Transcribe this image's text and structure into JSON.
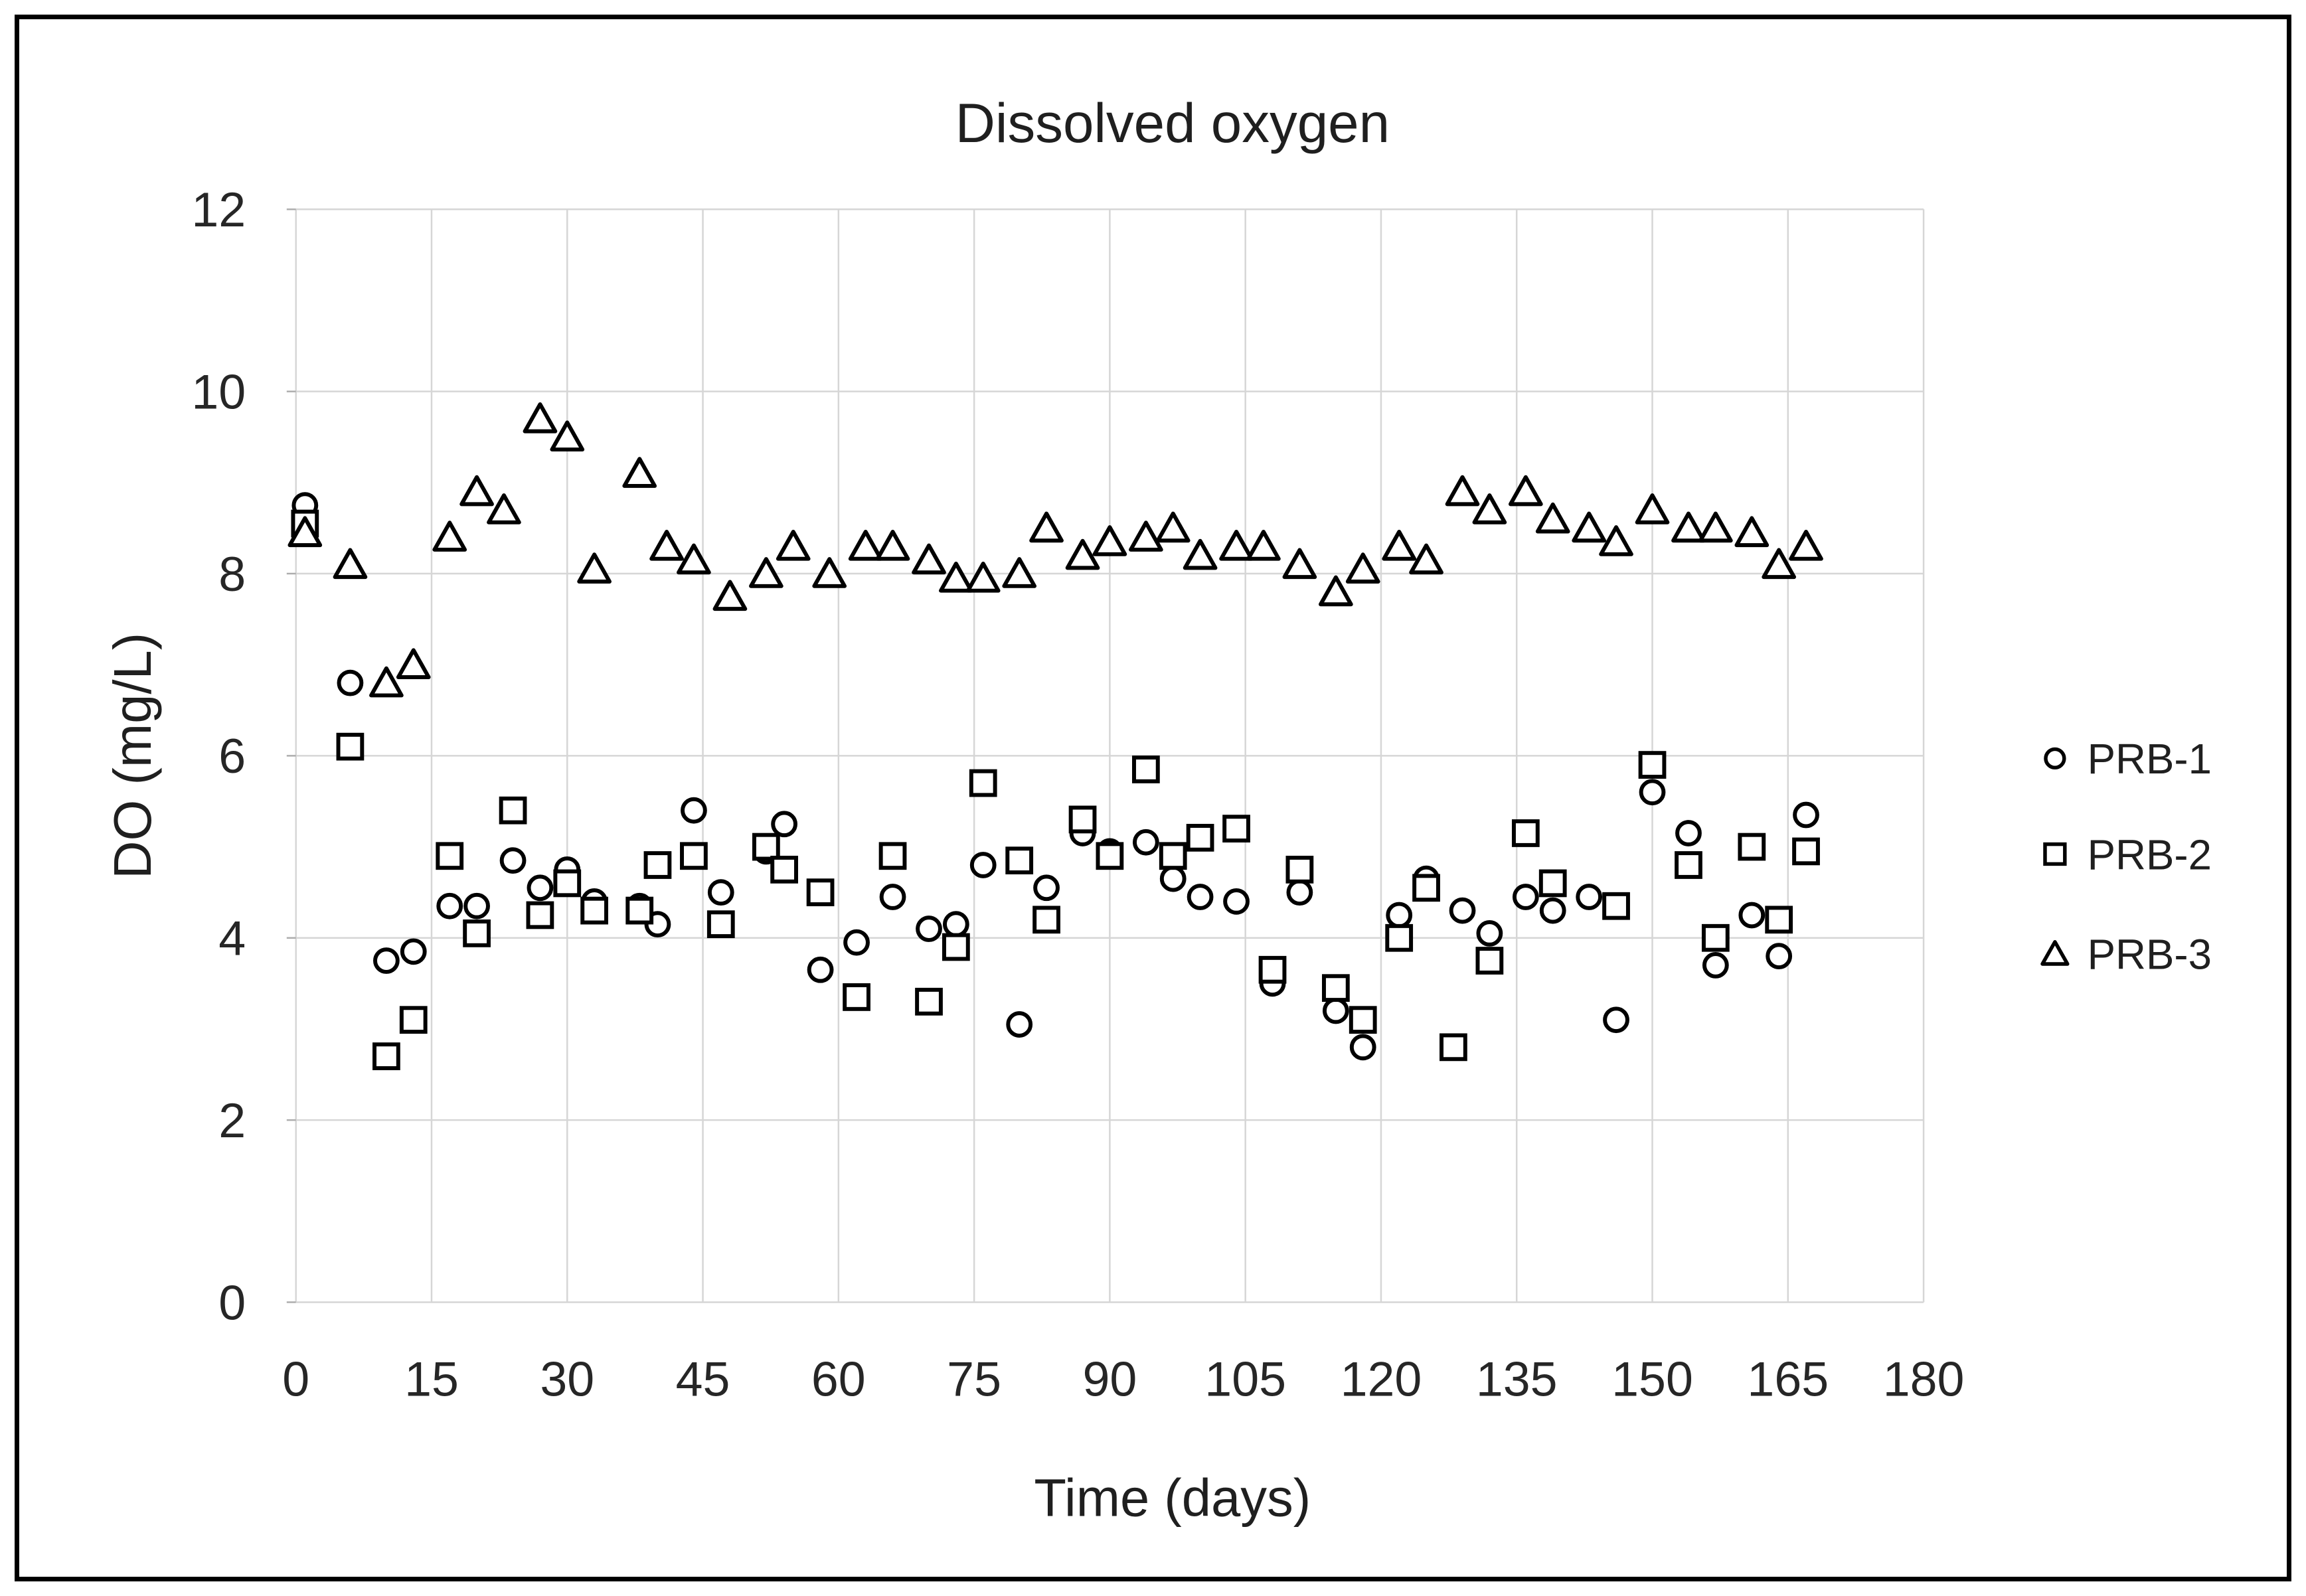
{
  "figure": {
    "background_color": "#ffffff",
    "frame_color": "#000000"
  },
  "chart_data": {
    "type": "scatter",
    "title": "Dissolved oxygen",
    "xlabel": "Time (days)",
    "ylabel": "DO (mg/L)",
    "xlim": [
      0,
      180
    ],
    "ylim": [
      0,
      12
    ],
    "xticks": [
      0,
      15,
      30,
      45,
      60,
      75,
      90,
      105,
      120,
      135,
      150,
      165,
      180
    ],
    "yticks": [
      0,
      2,
      4,
      6,
      8,
      10,
      12
    ],
    "grid": true,
    "legend_position": "right",
    "colors": {
      "marker_stroke": "#000000",
      "marker_fill": "#ffffff",
      "grid": "#d6d6d6",
      "text": "#1f1f1f"
    },
    "series": [
      {
        "name": "PRB-1",
        "marker": "circle",
        "points": [
          [
            1,
            8.75
          ],
          [
            6,
            6.8
          ],
          [
            10,
            3.75
          ],
          [
            13,
            3.85
          ],
          [
            17,
            4.35
          ],
          [
            20,
            4.35
          ],
          [
            24,
            4.85
          ],
          [
            27,
            4.55
          ],
          [
            30,
            4.75
          ],
          [
            33,
            4.4
          ],
          [
            38,
            4.35
          ],
          [
            40,
            4.15
          ],
          [
            44,
            5.4
          ],
          [
            47,
            4.5
          ],
          [
            52,
            4.95
          ],
          [
            54,
            5.25
          ],
          [
            58,
            3.65
          ],
          [
            62,
            3.95
          ],
          [
            66,
            4.45
          ],
          [
            70,
            4.1
          ],
          [
            73,
            4.15
          ],
          [
            76,
            4.8
          ],
          [
            80,
            3.05
          ],
          [
            83,
            4.55
          ],
          [
            87,
            5.15
          ],
          [
            90,
            4.95
          ],
          [
            94,
            5.05
          ],
          [
            97,
            4.65
          ],
          [
            100,
            4.45
          ],
          [
            104,
            4.4
          ],
          [
            108,
            3.5
          ],
          [
            111,
            4.5
          ],
          [
            115,
            3.2
          ],
          [
            118,
            2.8
          ],
          [
            122,
            4.25
          ],
          [
            125,
            4.65
          ],
          [
            129,
            4.3
          ],
          [
            132,
            4.05
          ],
          [
            136,
            4.45
          ],
          [
            139,
            4.3
          ],
          [
            143,
            4.45
          ],
          [
            146,
            3.1
          ],
          [
            150,
            5.6
          ],
          [
            154,
            5.15
          ],
          [
            157,
            3.7
          ],
          [
            161,
            4.25
          ],
          [
            164,
            3.8
          ],
          [
            167,
            5.35
          ]
        ]
      },
      {
        "name": "PRB-2",
        "marker": "square",
        "points": [
          [
            1,
            8.55
          ],
          [
            6,
            6.1
          ],
          [
            10,
            2.7
          ],
          [
            13,
            3.1
          ],
          [
            17,
            4.9
          ],
          [
            20,
            4.05
          ],
          [
            24,
            5.4
          ],
          [
            27,
            4.25
          ],
          [
            30,
            4.6
          ],
          [
            33,
            4.3
          ],
          [
            38,
            4.3
          ],
          [
            40,
            4.8
          ],
          [
            44,
            4.9
          ],
          [
            47,
            4.15
          ],
          [
            52,
            5.0
          ],
          [
            54,
            4.75
          ],
          [
            58,
            4.5
          ],
          [
            62,
            3.35
          ],
          [
            66,
            4.9
          ],
          [
            70,
            3.3
          ],
          [
            73,
            3.9
          ],
          [
            76,
            5.7
          ],
          [
            80,
            4.85
          ],
          [
            83,
            4.2
          ],
          [
            87,
            5.3
          ],
          [
            90,
            4.9
          ],
          [
            94,
            5.85
          ],
          [
            97,
            4.9
          ],
          [
            100,
            5.1
          ],
          [
            104,
            5.2
          ],
          [
            108,
            3.65
          ],
          [
            111,
            4.75
          ],
          [
            115,
            3.45
          ],
          [
            118,
            3.1
          ],
          [
            122,
            4.0
          ],
          [
            125,
            4.55
          ],
          [
            128,
            2.8
          ],
          [
            132,
            3.75
          ],
          [
            136,
            5.15
          ],
          [
            139,
            4.6
          ],
          [
            146,
            4.35
          ],
          [
            150,
            5.9
          ],
          [
            154,
            4.8
          ],
          [
            157,
            4.0
          ],
          [
            161,
            5.0
          ],
          [
            164,
            4.2
          ],
          [
            167,
            4.95
          ]
        ]
      },
      {
        "name": "PRB-3",
        "marker": "triangle",
        "points": [
          [
            1,
            8.45
          ],
          [
            6,
            8.1
          ],
          [
            10,
            6.8
          ],
          [
            13,
            7.0
          ],
          [
            17,
            8.4
          ],
          [
            20,
            8.9
          ],
          [
            23,
            8.7
          ],
          [
            27,
            9.7
          ],
          [
            30,
            9.5
          ],
          [
            33,
            8.05
          ],
          [
            38,
            9.1
          ],
          [
            41,
            8.3
          ],
          [
            44,
            8.15
          ],
          [
            48,
            7.75
          ],
          [
            52,
            8.0
          ],
          [
            55,
            8.3
          ],
          [
            59,
            8.0
          ],
          [
            63,
            8.3
          ],
          [
            66,
            8.3
          ],
          [
            70,
            8.15
          ],
          [
            73,
            7.95
          ],
          [
            76,
            7.95
          ],
          [
            80,
            8.0
          ],
          [
            83,
            8.5
          ],
          [
            87,
            8.2
          ],
          [
            90,
            8.35
          ],
          [
            94,
            8.4
          ],
          [
            97,
            8.5
          ],
          [
            100,
            8.2
          ],
          [
            104,
            8.3
          ],
          [
            107,
            8.3
          ],
          [
            111,
            8.1
          ],
          [
            115,
            7.8
          ],
          [
            118,
            8.05
          ],
          [
            122,
            8.3
          ],
          [
            125,
            8.15
          ],
          [
            129,
            8.9
          ],
          [
            132,
            8.7
          ],
          [
            136,
            8.9
          ],
          [
            139,
            8.6
          ],
          [
            143,
            8.5
          ],
          [
            146,
            8.35
          ],
          [
            150,
            8.7
          ],
          [
            154,
            8.5
          ],
          [
            157,
            8.5
          ],
          [
            161,
            8.45
          ],
          [
            164,
            8.1
          ],
          [
            167,
            8.3
          ]
        ]
      }
    ]
  }
}
